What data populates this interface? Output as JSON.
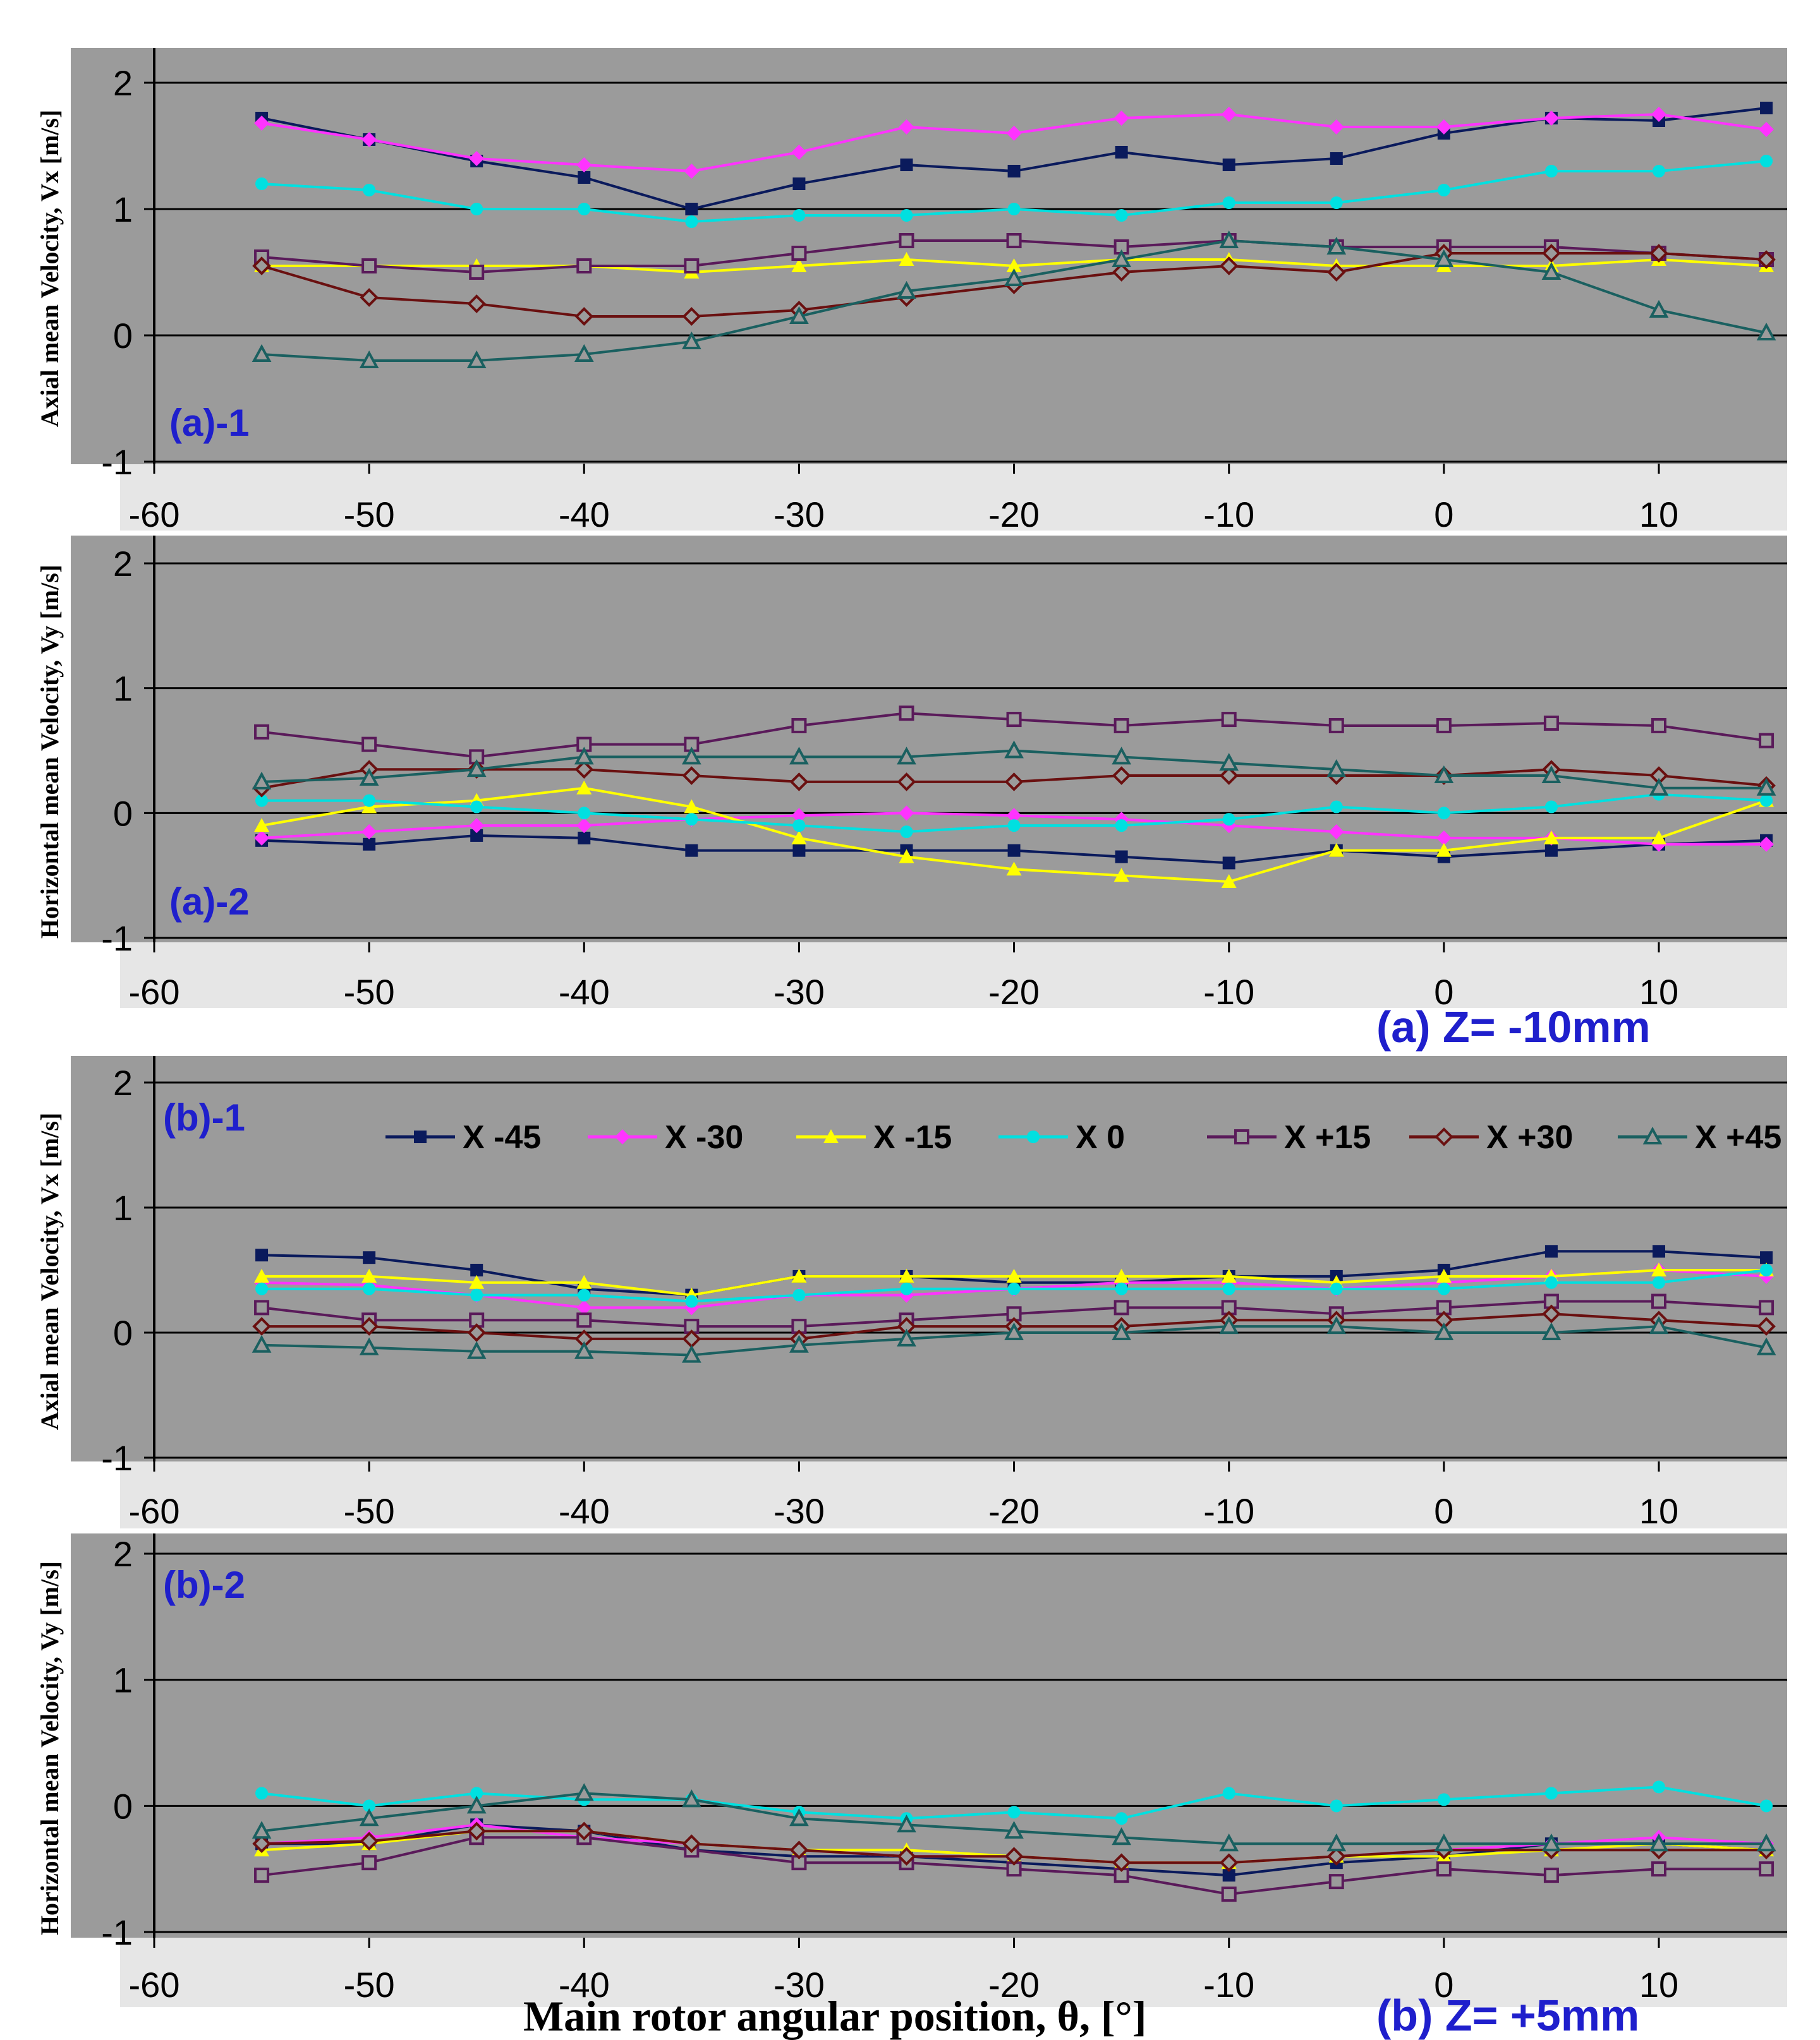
{
  "figure": {
    "xlabel": "Main rotor angular position, θ, [°]",
    "caption_a": "(a) Z= -10mm",
    "caption_b": "(b) Z= +5mm"
  },
  "chart_data": [
    {
      "id": "a1",
      "type": "line",
      "panel_label": "(a)-1",
      "ylabel": "Axial mean Velocity, Vx [m/s]",
      "xlim": [
        -60,
        15
      ],
      "ylim": [
        -1,
        2
      ],
      "x_ticks": [
        "-60",
        "-50",
        "-40",
        "-30",
        "-20",
        "-10",
        "0",
        "10"
      ],
      "y_ticks": [
        "-1",
        "0",
        "1",
        "2"
      ],
      "grid": "horizontal",
      "x": [
        -55,
        -50,
        -45,
        -40,
        -35,
        -30,
        -25,
        -20,
        -15,
        -10,
        -5,
        0,
        5,
        10,
        15
      ],
      "series": [
        {
          "name": "X -45",
          "values": [
            1.72,
            1.55,
            1.38,
            1.25,
            1.0,
            1.2,
            1.35,
            1.3,
            1.45,
            1.35,
            1.4,
            1.6,
            1.72,
            1.7,
            1.8
          ]
        },
        {
          "name": "X -30",
          "values": [
            1.68,
            1.55,
            1.4,
            1.35,
            1.3,
            1.45,
            1.65,
            1.6,
            1.72,
            1.75,
            1.65,
            1.65,
            1.72,
            1.75,
            1.63
          ]
        },
        {
          "name": "X -15",
          "values": [
            0.55,
            0.55,
            0.55,
            0.55,
            0.5,
            0.55,
            0.6,
            0.55,
            0.6,
            0.6,
            0.55,
            0.55,
            0.55,
            0.6,
            0.55
          ]
        },
        {
          "name": "X 0",
          "values": [
            1.2,
            1.15,
            1.0,
            1.0,
            0.9,
            0.95,
            0.95,
            1.0,
            0.95,
            1.05,
            1.05,
            1.15,
            1.3,
            1.3,
            1.38
          ]
        },
        {
          "name": "X +15",
          "values": [
            0.62,
            0.55,
            0.5,
            0.55,
            0.55,
            0.65,
            0.75,
            0.75,
            0.7,
            0.75,
            0.7,
            0.7,
            0.7,
            0.65,
            0.6
          ]
        },
        {
          "name": "X +30",
          "values": [
            0.55,
            0.3,
            0.25,
            0.15,
            0.15,
            0.2,
            0.3,
            0.4,
            0.5,
            0.55,
            0.5,
            0.65,
            0.65,
            0.65,
            0.6
          ]
        },
        {
          "name": "X +45",
          "values": [
            -0.15,
            -0.2,
            -0.2,
            -0.15,
            -0.05,
            0.15,
            0.35,
            0.45,
            0.6,
            0.75,
            0.7,
            0.6,
            0.5,
            0.2,
            0.02
          ]
        }
      ]
    },
    {
      "id": "a2",
      "type": "line",
      "panel_label": "(a)-2",
      "ylabel": "Horizontal mean Velocity, Vy [m/s]",
      "xlim": [
        -60,
        15
      ],
      "ylim": [
        -1,
        2
      ],
      "x_ticks": [
        "-60",
        "-50",
        "-40",
        "-30",
        "-20",
        "-10",
        "0",
        "10"
      ],
      "y_ticks": [
        "-1",
        "0",
        "1",
        "2"
      ],
      "grid": "horizontal",
      "x": [
        -55,
        -50,
        -45,
        -40,
        -35,
        -30,
        -25,
        -20,
        -15,
        -10,
        -5,
        0,
        5,
        10,
        15
      ],
      "series": [
        {
          "name": "X -45",
          "values": [
            -0.22,
            -0.25,
            -0.18,
            -0.2,
            -0.3,
            -0.3,
            -0.3,
            -0.3,
            -0.35,
            -0.4,
            -0.3,
            -0.35,
            -0.3,
            -0.25,
            -0.22
          ]
        },
        {
          "name": "X -30",
          "values": [
            -0.2,
            -0.15,
            -0.1,
            -0.1,
            -0.05,
            -0.02,
            0.0,
            -0.02,
            -0.05,
            -0.1,
            -0.15,
            -0.2,
            -0.2,
            -0.25,
            -0.25
          ]
        },
        {
          "name": "X -15",
          "values": [
            -0.1,
            0.05,
            0.1,
            0.2,
            0.05,
            -0.2,
            -0.35,
            -0.45,
            -0.5,
            -0.55,
            -0.3,
            -0.3,
            -0.2,
            -0.2,
            0.1
          ]
        },
        {
          "name": "X 0",
          "values": [
            0.1,
            0.1,
            0.05,
            0.0,
            -0.05,
            -0.1,
            -0.15,
            -0.1,
            -0.1,
            -0.05,
            0.05,
            0.0,
            0.05,
            0.15,
            0.1
          ]
        },
        {
          "name": "X +15",
          "values": [
            0.65,
            0.55,
            0.45,
            0.55,
            0.55,
            0.7,
            0.8,
            0.75,
            0.7,
            0.75,
            0.7,
            0.7,
            0.72,
            0.7,
            0.58
          ]
        },
        {
          "name": "X +30",
          "values": [
            0.2,
            0.35,
            0.35,
            0.35,
            0.3,
            0.25,
            0.25,
            0.25,
            0.3,
            0.3,
            0.3,
            0.3,
            0.35,
            0.3,
            0.22
          ]
        },
        {
          "name": "X +45",
          "values": [
            0.25,
            0.28,
            0.35,
            0.45,
            0.45,
            0.45,
            0.45,
            0.5,
            0.45,
            0.4,
            0.35,
            0.3,
            0.3,
            0.2,
            0.2
          ]
        }
      ]
    },
    {
      "id": "b1",
      "type": "line",
      "panel_label": "(b)-1",
      "ylabel": "Axial mean Velocity, Vx [m/s]",
      "xlim": [
        -60,
        15
      ],
      "ylim": [
        -1,
        2
      ],
      "x_ticks": [
        "-60",
        "-50",
        "-40",
        "-30",
        "-20",
        "-10",
        "0",
        "10"
      ],
      "y_ticks": [
        "-1",
        "0",
        "1",
        "2"
      ],
      "grid": "horizontal",
      "legend": "top",
      "x": [
        -55,
        -50,
        -45,
        -40,
        -35,
        -30,
        -25,
        -20,
        -15,
        -10,
        -5,
        0,
        5,
        10,
        15
      ],
      "series": [
        {
          "name": "X -45",
          "values": [
            0.62,
            0.6,
            0.5,
            0.35,
            0.3,
            0.45,
            0.45,
            0.4,
            0.4,
            0.45,
            0.45,
            0.5,
            0.65,
            0.65,
            0.6
          ]
        },
        {
          "name": "X -30",
          "values": [
            0.4,
            0.38,
            0.3,
            0.2,
            0.2,
            0.3,
            0.3,
            0.35,
            0.4,
            0.4,
            0.35,
            0.4,
            0.45,
            0.5,
            0.45
          ]
        },
        {
          "name": "X -15",
          "values": [
            0.45,
            0.45,
            0.4,
            0.4,
            0.3,
            0.45,
            0.45,
            0.45,
            0.45,
            0.45,
            0.4,
            0.45,
            0.45,
            0.5,
            0.5
          ]
        },
        {
          "name": "X 0",
          "values": [
            0.35,
            0.35,
            0.3,
            0.3,
            0.25,
            0.3,
            0.35,
            0.35,
            0.35,
            0.35,
            0.35,
            0.35,
            0.4,
            0.4,
            0.5
          ]
        },
        {
          "name": "X +15",
          "values": [
            0.2,
            0.1,
            0.1,
            0.1,
            0.05,
            0.05,
            0.1,
            0.15,
            0.2,
            0.2,
            0.15,
            0.2,
            0.25,
            0.25,
            0.2
          ]
        },
        {
          "name": "X +30",
          "values": [
            0.05,
            0.05,
            0.0,
            -0.05,
            -0.05,
            -0.05,
            0.05,
            0.05,
            0.05,
            0.1,
            0.1,
            0.1,
            0.15,
            0.1,
            0.05
          ]
        },
        {
          "name": "X +45",
          "values": [
            -0.1,
            -0.12,
            -0.15,
            -0.15,
            -0.18,
            -0.1,
            -0.05,
            0.0,
            0.0,
            0.05,
            0.05,
            0.0,
            0.0,
            0.05,
            -0.12
          ]
        }
      ]
    },
    {
      "id": "b2",
      "type": "line",
      "panel_label": "(b)-2",
      "ylabel": "Horizontal mean Velocity, Vy [m/s]",
      "xlim": [
        -60,
        15
      ],
      "ylim": [
        -1,
        2
      ],
      "x_ticks": [
        "-60",
        "-50",
        "-40",
        "-30",
        "-20",
        "-10",
        "0",
        "10"
      ],
      "y_ticks": [
        "-1",
        "0",
        "1",
        "2"
      ],
      "grid": "horizontal",
      "x": [
        -55,
        -50,
        -45,
        -40,
        -35,
        -30,
        -25,
        -20,
        -15,
        -10,
        -5,
        0,
        5,
        10,
        15
      ],
      "series": [
        {
          "name": "X -45",
          "values": [
            -0.3,
            -0.3,
            -0.15,
            -0.2,
            -0.35,
            -0.4,
            -0.4,
            -0.45,
            -0.5,
            -0.55,
            -0.45,
            -0.4,
            -0.3,
            -0.3,
            -0.35
          ]
        },
        {
          "name": "X -30",
          "values": [
            -0.3,
            -0.25,
            -0.15,
            -0.25,
            -0.3,
            -0.35,
            -0.4,
            -0.4,
            -0.45,
            -0.45,
            -0.4,
            -0.35,
            -0.3,
            -0.25,
            -0.3
          ]
        },
        {
          "name": "X -15",
          "values": [
            -0.35,
            -0.3,
            -0.2,
            -0.2,
            -0.3,
            -0.35,
            -0.35,
            -0.4,
            -0.45,
            -0.45,
            -0.4,
            -0.4,
            -0.35,
            -0.3,
            -0.35
          ]
        },
        {
          "name": "X 0",
          "values": [
            0.1,
            0.0,
            0.1,
            0.05,
            0.05,
            -0.05,
            -0.1,
            -0.05,
            -0.1,
            0.1,
            0.0,
            0.05,
            0.1,
            0.15,
            0.0
          ]
        },
        {
          "name": "X +15",
          "values": [
            -0.55,
            -0.45,
            -0.25,
            -0.25,
            -0.35,
            -0.45,
            -0.45,
            -0.5,
            -0.55,
            -0.7,
            -0.6,
            -0.5,
            -0.55,
            -0.5,
            -0.5
          ]
        },
        {
          "name": "X +30",
          "values": [
            -0.3,
            -0.28,
            -0.2,
            -0.2,
            -0.3,
            -0.35,
            -0.4,
            -0.4,
            -0.45,
            -0.45,
            -0.4,
            -0.35,
            -0.35,
            -0.35,
            -0.35
          ]
        },
        {
          "name": "X +45",
          "values": [
            -0.2,
            -0.1,
            0.0,
            0.1,
            0.05,
            -0.1,
            -0.15,
            -0.2,
            -0.25,
            -0.3,
            -0.3,
            -0.3,
            -0.3,
            -0.3,
            -0.3
          ]
        }
      ]
    }
  ],
  "series_styles": [
    {
      "name": "X -45",
      "color": "#0a1a5c",
      "marker": "square-filled"
    },
    {
      "name": "X -30",
      "color": "#ff33ff",
      "marker": "diamond-filled"
    },
    {
      "name": "X -15",
      "color": "#ffff00",
      "marker": "triangle-filled"
    },
    {
      "name": "X 0",
      "color": "#00e0e0",
      "marker": "circle-filled"
    },
    {
      "name": "X +15",
      "color": "#5a1a5a",
      "marker": "square-open"
    },
    {
      "name": "X +30",
      "color": "#6a1010",
      "marker": "diamond-open"
    },
    {
      "name": "X +45",
      "color": "#1a6060",
      "marker": "triangle-open"
    }
  ],
  "colors": {
    "plot_background": "#9b9b9b",
    "axis_band": "#e6e6e6",
    "label_blue": "#1f1fcc"
  }
}
